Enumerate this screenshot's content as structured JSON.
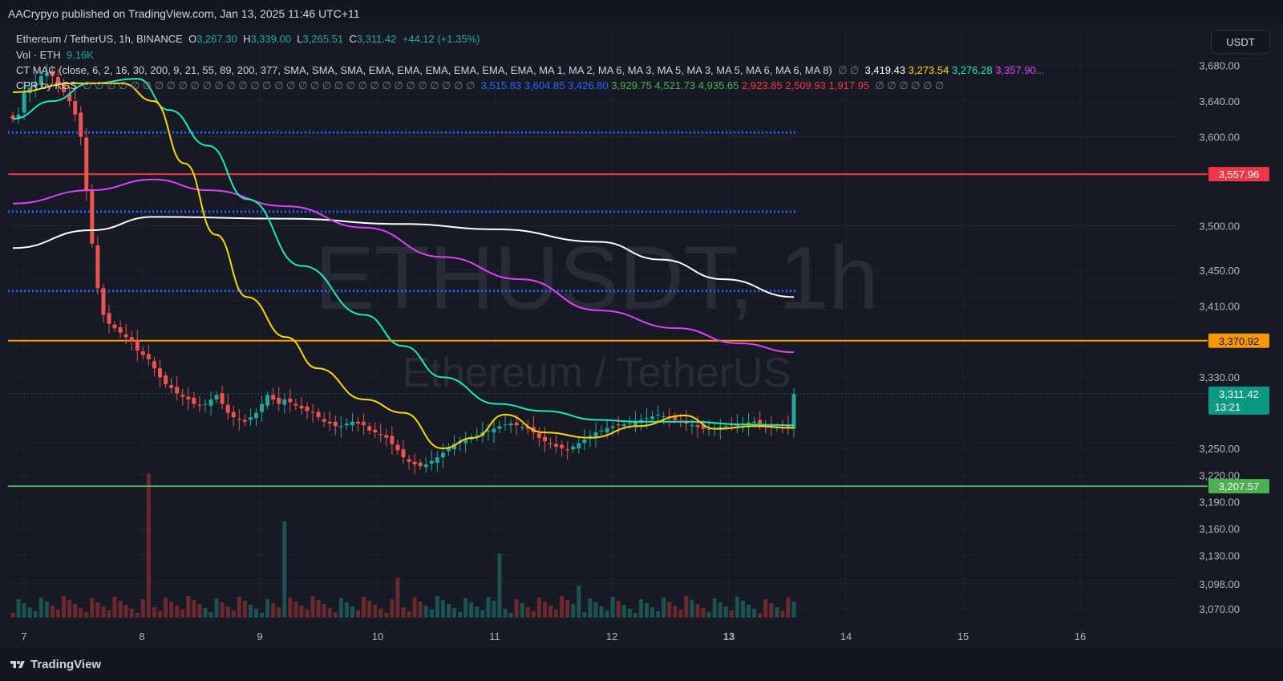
{
  "header": {
    "published": "AACrypyo published on TradingView.com, Jan 13, 2025 11:46 UTC+11"
  },
  "currency_button": "USDT",
  "legend": {
    "symbol": "Ethereum / TetherUS, 1h, BINANCE",
    "o_label": "O",
    "o": "3,267.30",
    "h_label": "H",
    "h": "3,339.00",
    "l_label": "L",
    "l": "3,265.51",
    "c_label": "C",
    "c": "3,311.42",
    "change": "+44.12 (+1.35%)",
    "vol": "Vol · ETH",
    "vol_value": "9.16K",
    "ctmac": "CT MAC (close, 6, 2, 16, 30, 200, 9, 21, 55, 89, 200, 377, SMA, SMA, SMA, EMA, EMA, EMA, EMA, EMA, EMA, MA 1, MA 2, MA 6, MA 3, MA 5, MA 3, MA 5, MA 6, MA 6, MA 8)",
    "ctmac_nulls": "∅ ∅",
    "ctmac_values": [
      {
        "v": "3,419.43",
        "color": "#ffffff"
      },
      {
        "v": "3,273.54",
        "color": "#ffd600"
      },
      {
        "v": "3,276.28",
        "color": "#1de9b6"
      },
      {
        "v": "3,357.90...",
        "color": "#e040fb"
      }
    ],
    "cpr": "CPR by KGS",
    "cpr_nulls": "∅ ∅ ∅ ∅ ∅ ∅ ∅ ∅ ∅ ∅ ∅ ∅ ∅ ∅ ∅ ∅ ∅ ∅ ∅ ∅ ∅ ∅ ∅ ∅ ∅ ∅ ∅ ∅ ∅ ∅ ∅ ∅ ∅",
    "cpr_values": [
      {
        "v": "3,515.83",
        "color": "#2962ff"
      },
      {
        "v": "3,604.85",
        "color": "#2962ff"
      },
      {
        "v": "3,426.80",
        "color": "#2962ff"
      },
      {
        "v": "3,929.75",
        "color": "#4caf50"
      },
      {
        "v": "4,521.73",
        "color": "#4caf50"
      },
      {
        "v": "4,935.65",
        "color": "#4caf50"
      },
      {
        "v": "2,923.85",
        "color": "#f23645"
      },
      {
        "v": "2,509.93",
        "color": "#f23645"
      },
      {
        "v": "1,917.95",
        "color": "#f23645"
      }
    ],
    "cpr_tail": "∅ ∅ ∅ ∅ ∅ ∅"
  },
  "watermark": {
    "big": "ETHUSDT, 1h",
    "small": "Ethereum / TetherUS"
  },
  "footer": {
    "brand": "TradingView"
  },
  "chart_data": {
    "type": "candlestick",
    "y_axis": {
      "range": [
        3060,
        3695
      ],
      "ticks": [
        3070,
        3098,
        3130,
        3160,
        3190,
        3220,
        3250,
        3330,
        3410,
        3450,
        3500,
        3600,
        3640,
        3680
      ],
      "tick_labels": [
        "3,070.00",
        "3,098.00",
        "3,130.00",
        "3,160.00",
        "3,190.00",
        "3,220.00",
        "3,250.00",
        "3,330.00",
        "3,410.00",
        "3,450.00",
        "3,500.00",
        "3,600.00",
        "3,640.00",
        "3,680.00"
      ]
    },
    "x_axis": {
      "labels": [
        "7",
        "8",
        "9",
        "10",
        "11",
        "12",
        "13",
        "14",
        "15",
        "16"
      ],
      "bold": [
        "13"
      ]
    },
    "horizontal_levels": [
      {
        "value": 3557.96,
        "label": "3,557.96",
        "color": "#f23645"
      },
      {
        "value": 3370.92,
        "label": "3,370.92",
        "color": "#ff9800"
      },
      {
        "value": 3207.57,
        "label": "3,207.57",
        "color": "#4caf50"
      }
    ],
    "last_price": {
      "value": 3311.42,
      "label": "3,311.42",
      "countdown": "13:21",
      "color": "#089981"
    },
    "cpr_dotted_levels": [
      3604.85,
      3515.83,
      3426.8
    ],
    "close_path": [
      3620,
      3625,
      3650,
      3655,
      3660,
      3668,
      3672,
      3668,
      3660,
      3650,
      3640,
      3625,
      3600,
      3540,
      3480,
      3430,
      3400,
      3390,
      3385,
      3380,
      3375,
      3370,
      3360,
      3355,
      3350,
      3340,
      3330,
      3322,
      3318,
      3312,
      3308,
      3305,
      3300,
      3298,
      3300,
      3305,
      3310,
      3300,
      3290,
      3285,
      3282,
      3280,
      3285,
      3290,
      3300,
      3310,
      3305,
      3300,
      3305,
      3302,
      3298,
      3295,
      3292,
      3290,
      3285,
      3280,
      3278,
      3275,
      3275,
      3278,
      3280,
      3278,
      3276,
      3270,
      3268,
      3265,
      3262,
      3255,
      3248,
      3240,
      3235,
      3232,
      3230,
      3232,
      3236,
      3240,
      3245,
      3250,
      3255,
      3258,
      3260,
      3262,
      3265,
      3268,
      3270,
      3272,
      3275,
      3277,
      3278,
      3276,
      3274,
      3272,
      3268,
      3262,
      3258,
      3255,
      3252,
      3250,
      3248,
      3252,
      3256,
      3260,
      3264,
      3268,
      3270,
      3273,
      3275,
      3276,
      3277,
      3278,
      3280,
      3282,
      3284,
      3286,
      3288,
      3286,
      3284,
      3282,
      3280,
      3278,
      3276,
      3274,
      3272,
      3272,
      3273,
      3274,
      3275,
      3276,
      3277,
      3278,
      3279,
      3280,
      3278,
      3276,
      3275,
      3274,
      3273,
      3273,
      3311
    ],
    "ma_lines": [
      {
        "name": "white",
        "color": "#ffffff",
        "points": [
          [
            0,
            3475
          ],
          [
            0.1,
            3495
          ],
          [
            0.18,
            3510
          ],
          [
            0.35,
            3508
          ],
          [
            0.5,
            3502
          ],
          [
            0.62,
            3496
          ],
          [
            0.75,
            3482
          ],
          [
            0.83,
            3462
          ],
          [
            0.91,
            3440
          ],
          [
            1,
            3420
          ]
        ]
      },
      {
        "name": "magenta",
        "color": "#e040fb",
        "points": [
          [
            0,
            3525
          ],
          [
            0.1,
            3540
          ],
          [
            0.18,
            3552
          ],
          [
            0.25,
            3540
          ],
          [
            0.35,
            3522
          ],
          [
            0.45,
            3498
          ],
          [
            0.55,
            3465
          ],
          [
            0.65,
            3440
          ],
          [
            0.75,
            3405
          ],
          [
            0.85,
            3385
          ],
          [
            0.93,
            3368
          ],
          [
            1,
            3358
          ]
        ]
      },
      {
        "name": "green",
        "color": "#1de9b6",
        "points": [
          [
            0,
            3620
          ],
          [
            0.05,
            3640
          ],
          [
            0.1,
            3660
          ],
          [
            0.16,
            3665
          ],
          [
            0.2,
            3630
          ],
          [
            0.25,
            3590
          ],
          [
            0.3,
            3530
          ],
          [
            0.37,
            3455
          ],
          [
            0.45,
            3400
          ],
          [
            0.5,
            3365
          ],
          [
            0.55,
            3330
          ],
          [
            0.62,
            3300
          ],
          [
            0.68,
            3292
          ],
          [
            0.75,
            3282
          ],
          [
            0.8,
            3280
          ],
          [
            0.87,
            3280
          ],
          [
            0.93,
            3277
          ],
          [
            1,
            3276
          ]
        ]
      },
      {
        "name": "yellow",
        "color": "#ffd600",
        "points": [
          [
            0,
            3650
          ],
          [
            0.08,
            3660
          ],
          [
            0.14,
            3660
          ],
          [
            0.18,
            3640
          ],
          [
            0.22,
            3570
          ],
          [
            0.26,
            3490
          ],
          [
            0.3,
            3420
          ],
          [
            0.35,
            3375
          ],
          [
            0.39,
            3340
          ],
          [
            0.45,
            3305
          ],
          [
            0.5,
            3290
          ],
          [
            0.55,
            3250
          ],
          [
            0.59,
            3262
          ],
          [
            0.63,
            3288
          ],
          [
            0.68,
            3268
          ],
          [
            0.74,
            3262
          ],
          [
            0.8,
            3275
          ],
          [
            0.86,
            3287
          ],
          [
            0.9,
            3272
          ],
          [
            0.95,
            3275
          ],
          [
            1,
            3273
          ]
        ]
      }
    ]
  }
}
